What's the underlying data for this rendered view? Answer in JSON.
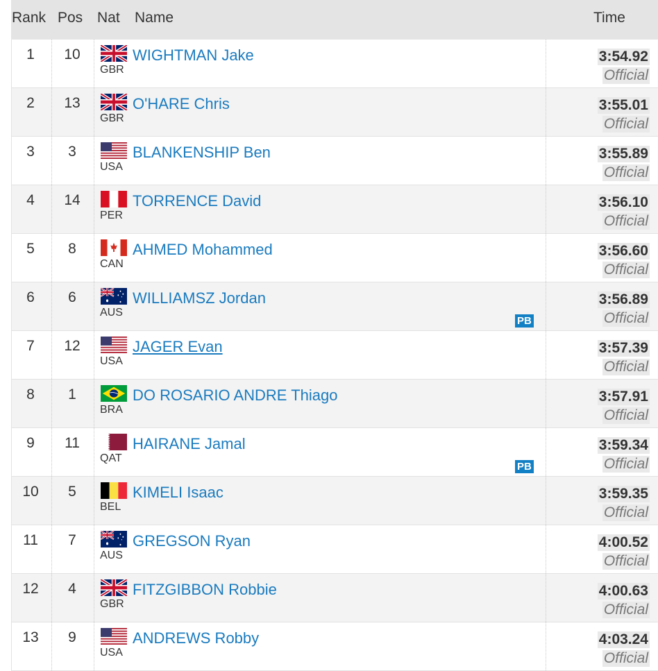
{
  "header": {
    "rank": "Rank",
    "pos": "Pos",
    "nat": "Nat",
    "name": "Name",
    "time": "Time"
  },
  "results": [
    {
      "rank": "1",
      "pos": "10",
      "nat": "GBR",
      "flag": "gbr",
      "name": "WIGHTMAN Jake",
      "pb": "",
      "time": "3:54.92",
      "status": "Official"
    },
    {
      "rank": "2",
      "pos": "13",
      "nat": "GBR",
      "flag": "gbr",
      "name": "O'HARE Chris",
      "pb": "",
      "time": "3:55.01",
      "status": "Official"
    },
    {
      "rank": "3",
      "pos": "3",
      "nat": "USA",
      "flag": "usa",
      "name": "BLANKENSHIP Ben",
      "pb": "",
      "time": "3:55.89",
      "status": "Official"
    },
    {
      "rank": "4",
      "pos": "14",
      "nat": "PER",
      "flag": "per",
      "name": "TORRENCE David",
      "pb": "",
      "time": "3:56.10",
      "status": "Official"
    },
    {
      "rank": "5",
      "pos": "8",
      "nat": "CAN",
      "flag": "can",
      "name": "AHMED Mohammed",
      "pb": "",
      "time": "3:56.60",
      "status": "Official"
    },
    {
      "rank": "6",
      "pos": "6",
      "nat": "AUS",
      "flag": "aus",
      "name": "WILLIAMSZ Jordan",
      "pb": "PB",
      "time": "3:56.89",
      "status": "Official"
    },
    {
      "rank": "7",
      "pos": "12",
      "nat": "USA",
      "flag": "usa",
      "name": "JAGER Evan",
      "pb": "",
      "time": "3:57.39",
      "status": "Official"
    },
    {
      "rank": "8",
      "pos": "1",
      "nat": "BRA",
      "flag": "bra",
      "name": "DO ROSARIO ANDRE Thiago",
      "pb": "",
      "time": "3:57.91",
      "status": "Official"
    },
    {
      "rank": "9",
      "pos": "11",
      "nat": "QAT",
      "flag": "qat",
      "name": "HAIRANE Jamal",
      "pb": "PB",
      "time": "3:59.34",
      "status": "Official"
    },
    {
      "rank": "10",
      "pos": "5",
      "nat": "BEL",
      "flag": "bel",
      "name": "KIMELI Isaac",
      "pb": "",
      "time": "3:59.35",
      "status": "Official"
    },
    {
      "rank": "11",
      "pos": "7",
      "nat": "AUS",
      "flag": "aus",
      "name": "GREGSON Ryan",
      "pb": "",
      "time": "4:00.52",
      "status": "Official"
    },
    {
      "rank": "12",
      "pos": "4",
      "nat": "GBR",
      "flag": "gbr",
      "name": "FITZGIBBON Robbie",
      "pb": "",
      "time": "4:00.63",
      "status": "Official"
    },
    {
      "rank": "13",
      "pos": "9",
      "nat": "USA",
      "flag": "usa",
      "name": "ANDREWS Robby",
      "pb": "",
      "time": "4:03.24",
      "status": "Official"
    }
  ],
  "colors": {
    "link": "#1a7bbf",
    "header_bg": "#e4e4e4",
    "row_alt_bg": "#f3f3f3",
    "pb_badge": "#1280c5"
  }
}
